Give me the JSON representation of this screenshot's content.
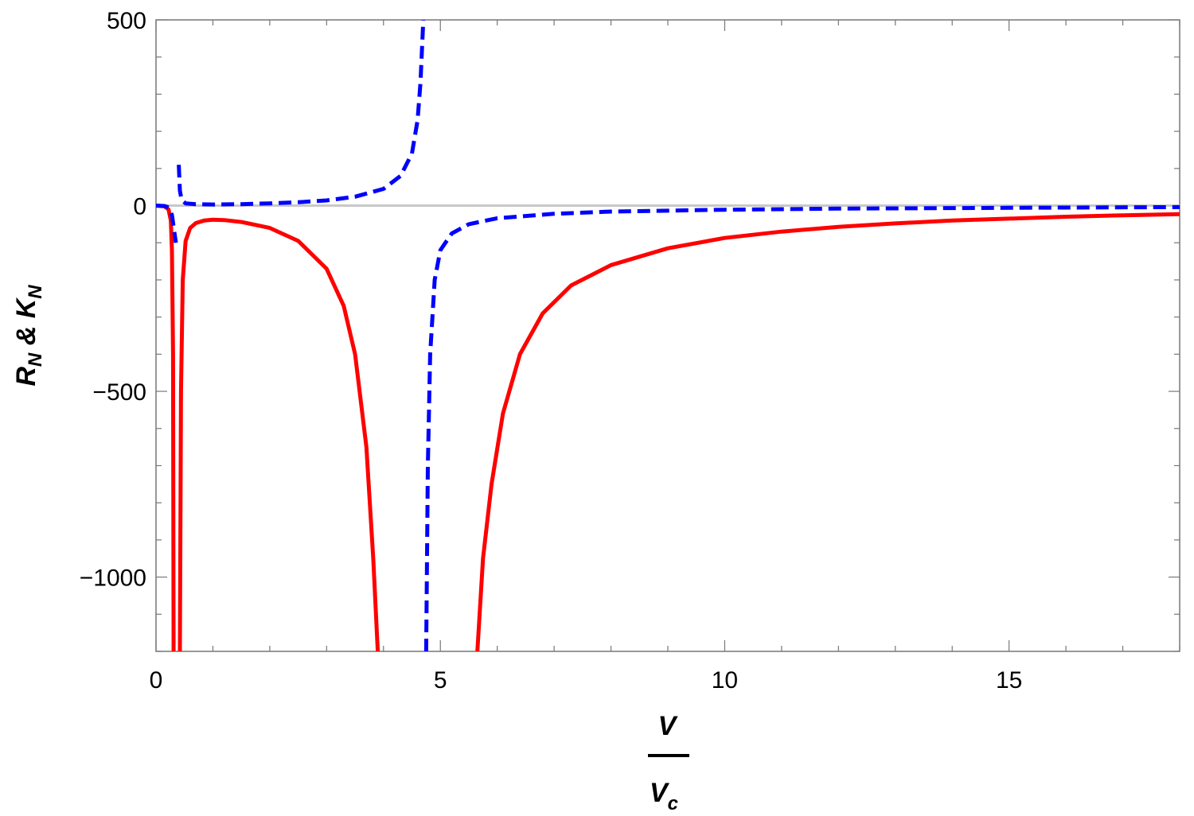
{
  "chart_data": {
    "type": "line",
    "title": "",
    "xlabel": {
      "numerator": "V",
      "denominator_main": "V",
      "denominator_sub": "c"
    },
    "ylabel": {
      "r_main": "R",
      "r_sub": "N",
      "amp": "&",
      "k_main": "K",
      "k_sub": "N"
    },
    "xlim": [
      0,
      18
    ],
    "ylim": [
      -1200,
      500
    ],
    "x_ticks": [
      0,
      5,
      10,
      15
    ],
    "x_tick_labels": [
      "0",
      "5",
      "10",
      "15"
    ],
    "y_ticks": [
      -1000,
      -500,
      0,
      500
    ],
    "y_tick_labels": [
      "−1000",
      "−500",
      "0",
      "500"
    ],
    "grid": false,
    "legend": "none",
    "zero_line_color": "#c8c8c8",
    "series": [
      {
        "style": "solid",
        "color": "#ff0000",
        "segments": [
          [
            [
              0,
              0
            ],
            [
              0.15,
              -2
            ],
            [
              0.22,
              -10
            ],
            [
              0.26,
              -40
            ],
            [
              0.28,
              -120
            ],
            [
              0.3,
              -400
            ],
            [
              0.31,
              -1200
            ]
          ],
          [
            [
              0.42,
              -1200
            ],
            [
              0.44,
              -500
            ],
            [
              0.47,
              -200
            ],
            [
              0.52,
              -95
            ],
            [
              0.6,
              -60
            ],
            [
              0.7,
              -47
            ],
            [
              0.85,
              -40
            ],
            [
              1.0,
              -38
            ],
            [
              1.2,
              -39
            ],
            [
              1.5,
              -44
            ],
            [
              2.0,
              -60
            ],
            [
              2.5,
              -95
            ],
            [
              3.0,
              -170
            ],
            [
              3.3,
              -270
            ],
            [
              3.5,
              -400
            ],
            [
              3.7,
              -650
            ],
            [
              3.82,
              -950
            ],
            [
              3.9,
              -1200
            ]
          ],
          [
            [
              5.65,
              -1200
            ],
            [
              5.75,
              -950
            ],
            [
              5.9,
              -750
            ],
            [
              6.1,
              -560
            ],
            [
              6.4,
              -400
            ],
            [
              6.8,
              -290
            ],
            [
              7.3,
              -215
            ],
            [
              8.0,
              -160
            ],
            [
              9.0,
              -115
            ],
            [
              10.0,
              -87
            ],
            [
              11.0,
              -70
            ],
            [
              12.0,
              -57
            ],
            [
              13.0,
              -48
            ],
            [
              14.0,
              -40
            ],
            [
              15.0,
              -35
            ],
            [
              16.0,
              -30
            ],
            [
              17.0,
              -26
            ],
            [
              18.0,
              -23
            ]
          ]
        ]
      },
      {
        "style": "dashed",
        "color": "#0000ff",
        "segments": [
          [
            [
              0,
              0
            ],
            [
              0.15,
              -1
            ],
            [
              0.22,
              -5
            ],
            [
              0.28,
              -25
            ],
            [
              0.33,
              -80
            ],
            [
              0.35,
              -100
            ]
          ],
          [
            [
              0.4,
              110
            ],
            [
              0.42,
              40
            ],
            [
              0.45,
              15
            ],
            [
              0.52,
              6
            ],
            [
              0.7,
              4
            ],
            [
              1.0,
              3
            ],
            [
              1.5,
              4
            ],
            [
              2.0,
              6
            ],
            [
              2.5,
              9
            ],
            [
              3.0,
              14
            ],
            [
              3.5,
              24
            ],
            [
              4.0,
              45
            ],
            [
              4.3,
              80
            ],
            [
              4.5,
              140
            ],
            [
              4.6,
              230
            ],
            [
              4.65,
              330
            ],
            [
              4.7,
              500
            ]
          ],
          [
            [
              4.75,
              -1200
            ],
            [
              4.78,
              -700
            ],
            [
              4.82,
              -400
            ],
            [
              4.9,
              -200
            ],
            [
              5.0,
              -120
            ],
            [
              5.2,
              -75
            ],
            [
              5.5,
              -50
            ],
            [
              6.0,
              -34
            ],
            [
              7.0,
              -22
            ],
            [
              8.0,
              -16
            ],
            [
              10.0,
              -11
            ],
            [
              12.0,
              -8
            ],
            [
              15.0,
              -6
            ],
            [
              18.0,
              -4
            ]
          ]
        ]
      }
    ]
  }
}
